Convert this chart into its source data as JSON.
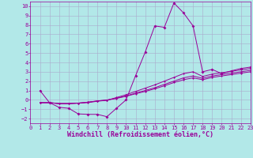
{
  "xlabel": "Windchill (Refroidissement éolien,°C)",
  "background_color": "#b2e8e8",
  "grid_color": "#aaaacc",
  "line_color": "#990099",
  "xlim": [
    0,
    23
  ],
  "ylim": [
    -2.5,
    10.5
  ],
  "xticks": [
    0,
    1,
    2,
    3,
    4,
    5,
    6,
    7,
    8,
    9,
    10,
    11,
    12,
    13,
    14,
    15,
    16,
    17,
    18,
    19,
    20,
    21,
    22,
    23
  ],
  "yticks": [
    -2,
    -1,
    0,
    1,
    2,
    3,
    4,
    5,
    6,
    7,
    8,
    9,
    10
  ],
  "main_x": [
    1,
    2,
    3,
    4,
    5,
    6,
    7,
    8,
    9,
    10,
    11,
    12,
    13,
    14,
    15,
    16,
    17,
    18,
    19,
    20,
    21,
    22,
    23
  ],
  "main_y": [
    1.0,
    -0.3,
    -0.8,
    -0.9,
    -1.5,
    -1.55,
    -1.55,
    -1.8,
    -0.9,
    0.0,
    2.6,
    5.1,
    7.9,
    7.75,
    10.35,
    9.3,
    7.9,
    3.0,
    3.25,
    2.8,
    3.1,
    3.35,
    3.5
  ],
  "line2_x": [
    1,
    2,
    3,
    4,
    5,
    6,
    7,
    8,
    9,
    10,
    11,
    12,
    13,
    14,
    15,
    16,
    17,
    18,
    19,
    20,
    21,
    22,
    23
  ],
  "line2_y": [
    -0.3,
    -0.3,
    -0.4,
    -0.4,
    -0.35,
    -0.3,
    -0.15,
    -0.05,
    0.25,
    0.55,
    0.9,
    1.25,
    1.6,
    2.0,
    2.4,
    2.8,
    3.0,
    2.5,
    2.75,
    2.9,
    3.05,
    3.2,
    3.35
  ],
  "line3_x": [
    1,
    2,
    3,
    4,
    5,
    6,
    7,
    8,
    9,
    10,
    11,
    12,
    13,
    14,
    15,
    16,
    17,
    18,
    19,
    20,
    21,
    22,
    23
  ],
  "line3_y": [
    -0.3,
    -0.3,
    -0.4,
    -0.4,
    -0.35,
    -0.25,
    -0.12,
    -0.02,
    0.18,
    0.42,
    0.72,
    1.0,
    1.3,
    1.65,
    2.0,
    2.35,
    2.55,
    2.3,
    2.55,
    2.7,
    2.85,
    3.0,
    3.15
  ],
  "line4_x": [
    1,
    2,
    3,
    4,
    5,
    6,
    7,
    8,
    9,
    10,
    11,
    12,
    13,
    14,
    15,
    16,
    17,
    18,
    19,
    20,
    21,
    22,
    23
  ],
  "line4_y": [
    -0.3,
    -0.3,
    -0.4,
    -0.4,
    -0.35,
    -0.25,
    -0.12,
    -0.02,
    0.15,
    0.38,
    0.65,
    0.9,
    1.18,
    1.5,
    1.85,
    2.15,
    2.35,
    2.15,
    2.4,
    2.55,
    2.7,
    2.85,
    3.0
  ],
  "tick_fontsize": 5,
  "label_fontsize": 6,
  "marker": "D",
  "marker_size": 2.0,
  "linewidth": 0.7
}
